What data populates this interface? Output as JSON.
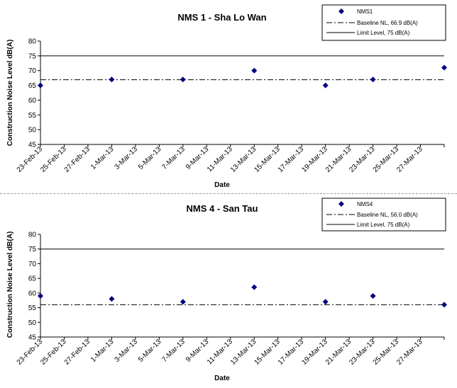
{
  "charts": [
    {
      "title": "NMS 1 - Sha Lo Wan",
      "xlabel": "Date",
      "ylabel": "Construction Noise Level  dB(A)",
      "legend": {
        "series": "NMS1",
        "baseline": "Baseline NL, 66.9 dB(A)",
        "limit": "Limit Level, 75 dB(A)"
      }
    },
    {
      "title": "NMS 4 - San Tau",
      "xlabel": "Date",
      "ylabel": "Construction Noise Level  dB(A)",
      "legend": {
        "series": "NMS4",
        "baseline": "Baseline NL, 56.0 dB(A)",
        "limit": "Limit Level, 75 dB(A)"
      }
    }
  ],
  "chart_data": [
    {
      "type": "scatter",
      "title": "NMS 1 - Sha Lo Wan",
      "xlabel": "Date",
      "ylabel": "Construction Noise Level  dB(A)",
      "ylim": [
        45,
        80
      ],
      "yticks": [
        45,
        50,
        55,
        60,
        65,
        70,
        75,
        80
      ],
      "xlim": [
        "2013-02-23",
        "2013-03-29"
      ],
      "xticks": [
        "23-Feb-13",
        "25-Feb-13",
        "27-Feb-13",
        "1-Mar-13",
        "3-Mar-13",
        "5-Mar-13",
        "7-Mar-13",
        "9-Mar-13",
        "11-Mar-13",
        "13-Mar-13",
        "15-Mar-13",
        "17-Mar-13",
        "19-Mar-13",
        "21-Mar-13",
        "23-Mar-13",
        "25-Mar-13",
        "27-Mar-13"
      ],
      "series": [
        {
          "name": "NMS1",
          "color": "#000080",
          "marker": "diamond",
          "x": [
            "2013-02-23",
            "2013-03-01",
            "2013-03-07",
            "2013-03-13",
            "2013-03-19",
            "2013-03-23",
            "2013-03-29"
          ],
          "y": [
            65,
            67,
            67,
            70,
            65,
            67,
            71
          ]
        }
      ],
      "reference_lines": [
        {
          "name": "Baseline NL, 66.9 dB(A)",
          "value": 66.9,
          "style": "dash-dot"
        },
        {
          "name": "Limit Level, 75 dB(A)",
          "value": 75,
          "style": "solid"
        }
      ],
      "grid": false,
      "legend_position": "top-right"
    },
    {
      "type": "scatter",
      "title": "NMS 4 - San Tau",
      "xlabel": "Date",
      "ylabel": "Construction Noise Level  dB(A)",
      "ylim": [
        45,
        80
      ],
      "yticks": [
        45,
        50,
        55,
        60,
        65,
        70,
        75,
        80
      ],
      "xlim": [
        "2013-02-23",
        "2013-03-29"
      ],
      "xticks": [
        "23-Feb-13",
        "25-Feb-13",
        "27-Feb-13",
        "1-Mar-13",
        "3-Mar-13",
        "5-Mar-13",
        "7-Mar-13",
        "9-Mar-13",
        "11-Mar-13",
        "13-Mar-13",
        "15-Mar-13",
        "17-Mar-13",
        "19-Mar-13",
        "21-Mar-13",
        "23-Mar-13",
        "25-Mar-13",
        "27-Mar-13"
      ],
      "series": [
        {
          "name": "NMS4",
          "color": "#000080",
          "marker": "diamond",
          "x": [
            "2013-02-23",
            "2013-03-01",
            "2013-03-07",
            "2013-03-13",
            "2013-03-19",
            "2013-03-23",
            "2013-03-29"
          ],
          "y": [
            59,
            58,
            57,
            62,
            57,
            59,
            56
          ]
        }
      ],
      "reference_lines": [
        {
          "name": "Baseline NL, 56.0 dB(A)",
          "value": 56.0,
          "style": "dash-dot"
        },
        {
          "name": "Limit Level, 75 dB(A)",
          "value": 75,
          "style": "solid"
        }
      ],
      "grid": false,
      "legend_position": "top-right"
    }
  ]
}
